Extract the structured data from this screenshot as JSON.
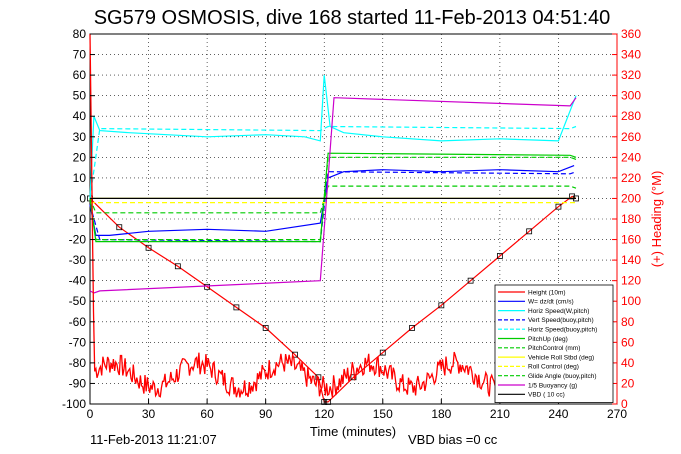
{
  "title": "SG579 OSMOSIS, dive 168 started 11-Feb-2013 04:51:40",
  "timestamp": "11-Feb-2013 11:21:07",
  "vbd_bias": "VBD bias =0 cc",
  "colors": {
    "height": "#ff0000",
    "w": "#0000ff",
    "horiz": "#00ffff",
    "pitch": "#00cc00",
    "roll": "#ffff00",
    "buoy": "#cc00cc",
    "vbd": "#000000",
    "axis_right": "#ff0000"
  },
  "chart_data": {
    "type": "line",
    "xlabel": "Time (minutes)",
    "ylabel_right": "(+) Heading (°M)",
    "xlim": [
      0,
      270
    ],
    "ylim_left": [
      -100,
      80
    ],
    "ylim_right": [
      0,
      360
    ],
    "xticks": [
      0,
      30,
      60,
      90,
      120,
      150,
      180,
      210,
      240,
      270
    ],
    "yticks_left": [
      80,
      70,
      60,
      50,
      40,
      30,
      20,
      10,
      0,
      -10,
      -20,
      -30,
      -40,
      -50,
      -60,
      -70,
      -80,
      -90,
      -100
    ],
    "yticks_right": [
      360,
      340,
      320,
      300,
      280,
      260,
      240,
      220,
      200,
      180,
      160,
      140,
      120,
      100,
      80,
      60,
      40,
      20,
      0
    ],
    "grid": true,
    "legend_position": "bottom-right",
    "series": [
      {
        "name": "Height (10m)",
        "color": "#ff0000",
        "style": "solid",
        "markers": true,
        "x": [
          0,
          15,
          30,
          45,
          60,
          75,
          90,
          105,
          117,
          120,
          122,
          135,
          150,
          165,
          180,
          195,
          210,
          225,
          240,
          247,
          249
        ],
        "y": [
          0,
          -14,
          -24,
          -33,
          -43,
          -53,
          -63,
          -76,
          -87,
          -99,
          -99,
          -87,
          -75,
          -63,
          -52,
          -40,
          -28,
          -16,
          -4,
          1,
          0
        ]
      },
      {
        "name": "W= dz/dt (cm/s)",
        "color": "#0000ff",
        "style": "solid",
        "x": [
          0,
          3,
          10,
          30,
          60,
          90,
          118,
          122,
          130,
          150,
          180,
          210,
          240,
          248
        ],
        "y": [
          -3,
          -18,
          -18,
          -16,
          -15,
          -16,
          -12,
          10,
          13,
          14,
          13,
          14,
          13,
          16
        ]
      },
      {
        "name": "Horiz Speed(W,pitch)",
        "color": "#00ffff",
        "style": "solid",
        "x": [
          0,
          2,
          5,
          20,
          60,
          90,
          110,
          118,
          120,
          123,
          130,
          150,
          180,
          210,
          240,
          249
        ],
        "y": [
          0,
          40,
          33,
          32,
          30,
          31,
          30,
          28,
          60,
          35,
          32,
          30,
          28,
          29,
          28,
          50
        ]
      },
      {
        "name": "Vert Speed(buoy,pitch)",
        "color": "#0000ff",
        "style": "dashed",
        "x": [
          0,
          5,
          118,
          122,
          246,
          249
        ],
        "y": [
          -3,
          -20,
          -21,
          13,
          12,
          13
        ]
      },
      {
        "name": "Horiz Speed(buoy,pitch)",
        "color": "#00ffff",
        "style": "dashed",
        "x": [
          0,
          5,
          118,
          122,
          246,
          249
        ],
        "y": [
          0,
          34,
          33,
          35,
          34,
          35
        ]
      },
      {
        "name": "PitchUp (deg)",
        "color": "#00cc00",
        "style": "solid",
        "x": [
          0,
          3,
          10,
          118,
          122,
          246,
          249
        ],
        "y": [
          0,
          -21,
          -21,
          -21,
          22,
          21,
          20
        ]
      },
      {
        "name": "PitchControl (mm)",
        "color": "#00cc00",
        "style": "dashed",
        "x": [
          0,
          3,
          118,
          122,
          246,
          249
        ],
        "y": [
          0,
          -7,
          -7,
          6,
          6,
          5
        ]
      },
      {
        "name": "Vehicle Roll Stbd (deg)",
        "color": "#ffff00",
        "style": "solid",
        "x": [
          0,
          10,
          30,
          60,
          90,
          118,
          122,
          150,
          180,
          210,
          240,
          249
        ],
        "y": [
          0,
          0,
          0,
          0,
          0,
          0,
          0,
          0,
          0,
          0,
          0,
          0
        ]
      },
      {
        "name": "Roll Control (deg)",
        "color": "#ffff00",
        "style": "dashed",
        "x": [
          0,
          249
        ],
        "y": [
          -2,
          -2
        ]
      },
      {
        "name": "Glide Angle (buoy,pitch)",
        "color": "#00cc00",
        "style": "dashed",
        "x": [
          0,
          3,
          118,
          122,
          246,
          249
        ],
        "y": [
          0,
          -20,
          -20,
          20,
          20,
          19
        ]
      },
      {
        "name": "1/5 Buoyancy (g)",
        "color": "#cc00cc",
        "style": "solid",
        "x": [
          0,
          2,
          5,
          118,
          122,
          125,
          246,
          249
        ],
        "y": [
          -45,
          -46,
          -45,
          -40,
          10,
          49,
          45,
          49
        ]
      },
      {
        "name": "VBD ( 10 cc)",
        "color": "#000000",
        "style": "solid",
        "x": [
          0,
          249
        ],
        "y": [
          0,
          0
        ]
      }
    ],
    "heading_series": {
      "name": "Heading",
      "color": "#ff0000",
      "axis": "right"
    }
  }
}
